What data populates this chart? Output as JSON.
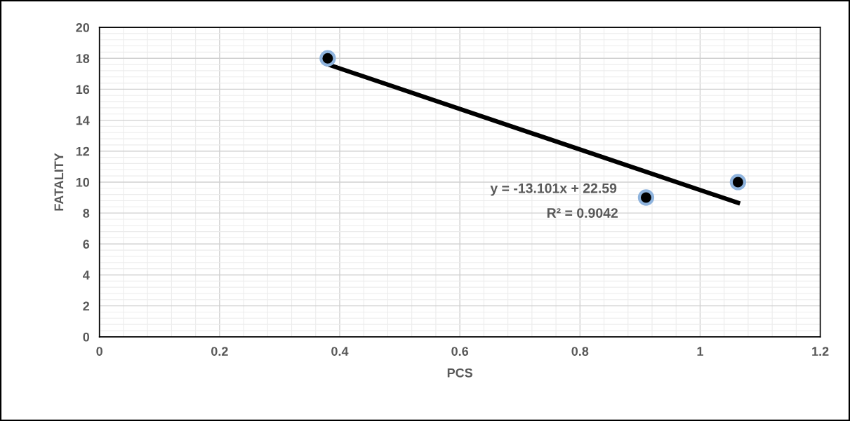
{
  "chart_data": {
    "type": "scatter",
    "xlabel": "PCS",
    "ylabel": "FATALITY",
    "series": [
      {
        "color": "#000000",
        "x": [
          0.38,
          0.91,
          1.063
        ],
        "values": [
          18,
          9,
          10
        ],
        "marker": "circle"
      },
      {
        "type": "line",
        "color": "#000000",
        "x": [
          0.38,
          1.063
        ],
        "values": [
          17.61,
          8.66
        ],
        "marker": "none",
        "line_style": "solid"
      }
    ],
    "annotations": [
      "y = -13.101x + 22.59",
      "R² = 0.9042"
    ],
    "xlim": [
      0,
      1.2
    ],
    "xticks": [
      0,
      0.2,
      0.4,
      0.6,
      0.8,
      1,
      1.2
    ],
    "ylim": [
      0,
      20
    ],
    "yticks": [
      0,
      2,
      4,
      6,
      8,
      10,
      12,
      14,
      16,
      18,
      20
    ],
    "grid": true,
    "legend": false
  }
}
